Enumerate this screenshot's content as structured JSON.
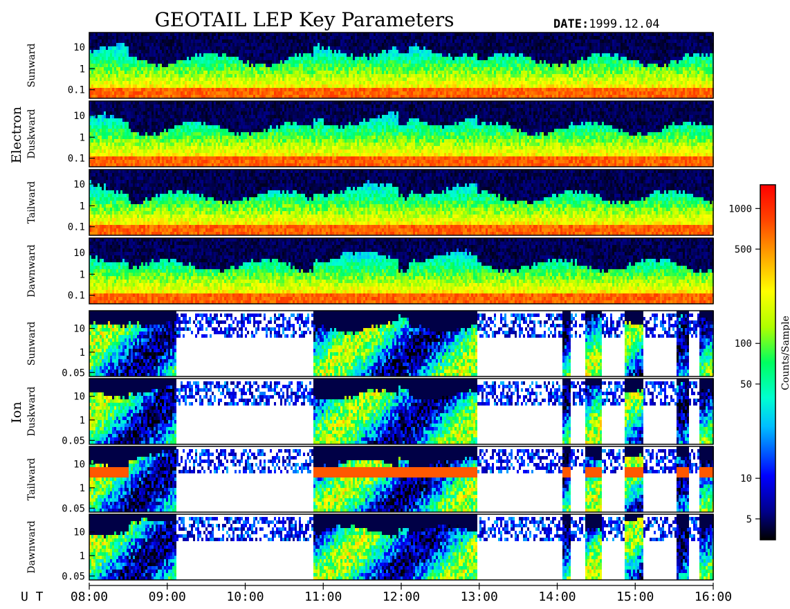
{
  "header": {
    "title": "GEOTAIL LEP Key Parameters",
    "date_label": "DATE:",
    "date_value": "1999.12.04"
  },
  "groups": [
    {
      "label": "Electron",
      "panels": [
        0,
        1,
        2,
        3
      ]
    },
    {
      "label": "Ion",
      "panels": [
        4,
        5,
        6,
        7
      ]
    }
  ],
  "time_axis": {
    "label": "U T",
    "ticks": [
      "08:00",
      "09:00",
      "10:00",
      "11:00",
      "12:00",
      "13:00",
      "14:00",
      "15:00",
      "16:00"
    ]
  },
  "colorbar": {
    "label": "Counts/Sample",
    "ticks": [
      "1000",
      "500",
      "100",
      "50",
      "10",
      "5"
    ],
    "scale": "log",
    "range": [
      3.5,
      1500
    ],
    "colormap": [
      "#000000",
      "#00008b",
      "#0000ff",
      "#00bfff",
      "#00ffd0",
      "#00ff60",
      "#b0ff00",
      "#ffff00",
      "#ffa500",
      "#ff4500",
      "#ff0000"
    ]
  },
  "chart_data": {
    "type": "heatmap",
    "x_range": [
      "08:00",
      "16:00"
    ],
    "y_scale": "log",
    "panels": [
      {
        "species": "Electron",
        "direction": "Sunward",
        "yticks": [
          "10",
          "1",
          "0.1"
        ]
      },
      {
        "species": "Electron",
        "direction": "Duskward",
        "yticks": [
          "10",
          "1",
          "0.1"
        ]
      },
      {
        "species": "Electron",
        "direction": "Tailward",
        "yticks": [
          "10",
          "1",
          "0.1"
        ]
      },
      {
        "species": "Electron",
        "direction": "Dawnward",
        "yticks": [
          "10",
          "1",
          "0.1"
        ]
      },
      {
        "species": "Ion",
        "direction": "Sunward",
        "yticks": [
          "10",
          "1",
          "0.05"
        ]
      },
      {
        "species": "Ion",
        "direction": "Duskward",
        "yticks": [
          "10",
          "1",
          "0.05"
        ]
      },
      {
        "species": "Ion",
        "direction": "Tailward",
        "yticks": [
          "10",
          "1",
          "0.05"
        ]
      },
      {
        "species": "Ion",
        "direction": "Dawnward",
        "yticks": [
          "10",
          "1",
          "0.05"
        ]
      }
    ]
  }
}
